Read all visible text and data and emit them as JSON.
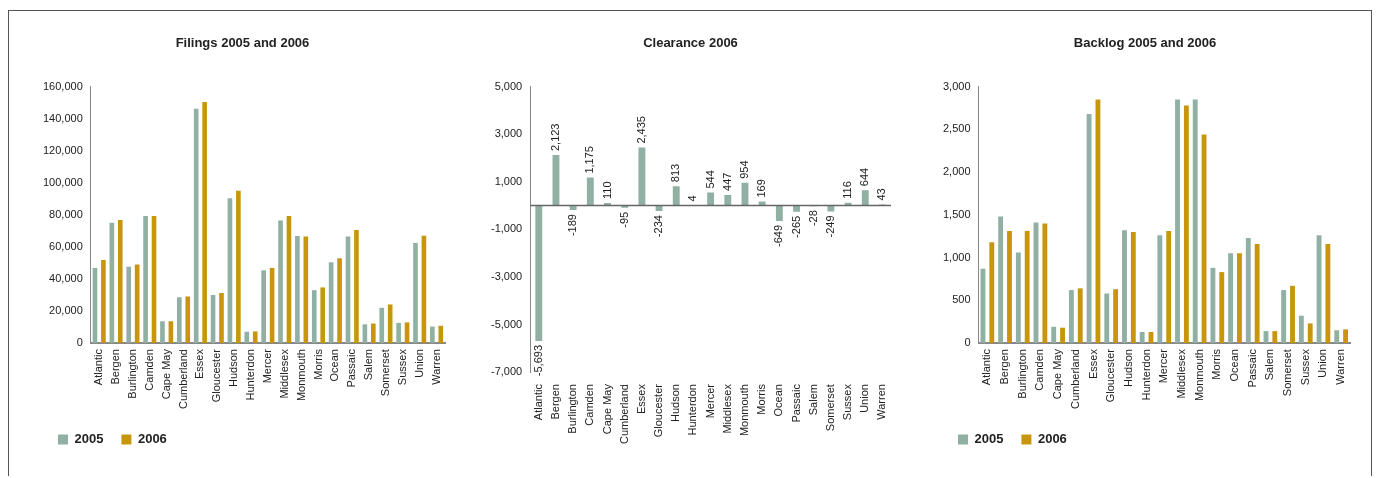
{
  "chart_data": [
    {
      "type": "bar",
      "title": "Filings 2005 and 2006",
      "categories": [
        "Atlantic",
        "Bergen",
        "Burlington",
        "Camden",
        "Cape May",
        "Cumberland",
        "Essex",
        "Gloucester",
        "Hudson",
        "Hunterdon",
        "Mercer",
        "Middlesex",
        "Monmouth",
        "Morris",
        "Ocean",
        "Passaic",
        "Salem",
        "Somerset",
        "Sussex",
        "Union",
        "Warren"
      ],
      "series": [
        {
          "name": "2005",
          "color": "#8fb0a3",
          "values": [
            46900,
            75000,
            47600,
            79200,
            13600,
            28600,
            146200,
            30000,
            90400,
            7000,
            45400,
            76400,
            66800,
            33000,
            50400,
            66500,
            11700,
            22000,
            12600,
            62500,
            10300
          ]
        },
        {
          "name": "2006",
          "color": "#c8960c",
          "values": [
            51800,
            76800,
            49000,
            79200,
            13600,
            29000,
            150400,
            31200,
            95100,
            7300,
            46900,
            79200,
            66500,
            34700,
            52900,
            70500,
            12200,
            24100,
            12900,
            67000,
            10800
          ]
        }
      ],
      "ylim": [
        0,
        160000
      ],
      "yticks": [
        {
          "value": 0,
          "label": "0"
        },
        {
          "value": 20000,
          "label": "20,000"
        },
        {
          "value": 40000,
          "label": "40,000"
        },
        {
          "value": 60000,
          "label": "60,000"
        },
        {
          "value": 80000,
          "label": "80,000"
        },
        {
          "value": 100000,
          "label": "100,000"
        },
        {
          "value": 120000,
          "label": "120,000"
        },
        {
          "value": 140000,
          "label": "140,000"
        },
        {
          "value": 160000,
          "label": "160,000"
        }
      ],
      "legend": "bottom left"
    },
    {
      "type": "bar",
      "title": "Clearance 2006",
      "categories": [
        "Atlantic",
        "Bergen",
        "Burlington",
        "Camden",
        "Cape May",
        "Cumberland",
        "Essex",
        "Gloucester",
        "Hudson",
        "Hunterdon",
        "Mercer",
        "Middlesex",
        "Monmouth",
        "Morris",
        "Ocean",
        "Passaic",
        "Salem",
        "Somerset",
        "Sussex",
        "Union",
        "Warren"
      ],
      "values": [
        -5693,
        2123,
        -189,
        1175,
        110,
        -95,
        2435,
        -234,
        813,
        4,
        544,
        447,
        954,
        169,
        -649,
        -265,
        -28,
        -249,
        116,
        644,
        43
      ],
      "color": "#8fb0a3",
      "value_labels": [
        "-5,693",
        "2,123",
        "-189",
        "1,175",
        "110",
        "-95",
        "2,435",
        "-234",
        "813",
        "4",
        "544",
        "447",
        "954",
        "169",
        "-649",
        "-265",
        "-28",
        "-249",
        "116",
        "644",
        "43"
      ],
      "ylim": [
        -7000,
        5000
      ],
      "yticks": [
        {
          "value": -7000,
          "label": "-7,000"
        },
        {
          "value": -5000,
          "label": "-5,000"
        },
        {
          "value": -3000,
          "label": "-3,000"
        },
        {
          "value": -1000,
          "label": "-1,000"
        },
        {
          "value": 1000,
          "label": "1,000"
        },
        {
          "value": 3000,
          "label": "3,000"
        },
        {
          "value": 5000,
          "label": "5,000"
        }
      ]
    },
    {
      "type": "bar",
      "title": "Backlog 2005 and 2006",
      "categories": [
        "Atlantic",
        "Bergen",
        "Burlington",
        "Camden",
        "Cape May",
        "Cumberland",
        "Essex",
        "Gloucester",
        "Hudson",
        "Hunterdon",
        "Mercer",
        "Middlesex",
        "Monmouth",
        "Morris",
        "Ocean",
        "Passaic",
        "Salem",
        "Somerset",
        "Sussex",
        "Union",
        "Warren"
      ],
      "series": [
        {
          "name": "2005",
          "color": "#8fb0a3",
          "values": [
            870,
            1480,
            1060,
            1410,
            190,
            620,
            2680,
            580,
            1320,
            130,
            1260,
            2850,
            2850,
            880,
            1050,
            1230,
            140,
            620,
            320,
            1260,
            150
          ]
        },
        {
          "name": "2006",
          "color": "#c8960c",
          "values": [
            1180,
            1310,
            1310,
            1400,
            180,
            640,
            2850,
            630,
            1300,
            130,
            1310,
            2780,
            2440,
            830,
            1050,
            1160,
            140,
            670,
            230,
            1160,
            160
          ]
        }
      ],
      "ylim": [
        0,
        3000
      ],
      "yticks": [
        {
          "value": 0,
          "label": "0"
        },
        {
          "value": 500,
          "label": "500"
        },
        {
          "value": 1000,
          "label": "1,000"
        },
        {
          "value": 1500,
          "label": "1,500"
        },
        {
          "value": 2000,
          "label": "2,000"
        },
        {
          "value": 2500,
          "label": "2,500"
        },
        {
          "value": 3000,
          "label": "3,000"
        }
      ],
      "legend": "bottom left"
    }
  ]
}
